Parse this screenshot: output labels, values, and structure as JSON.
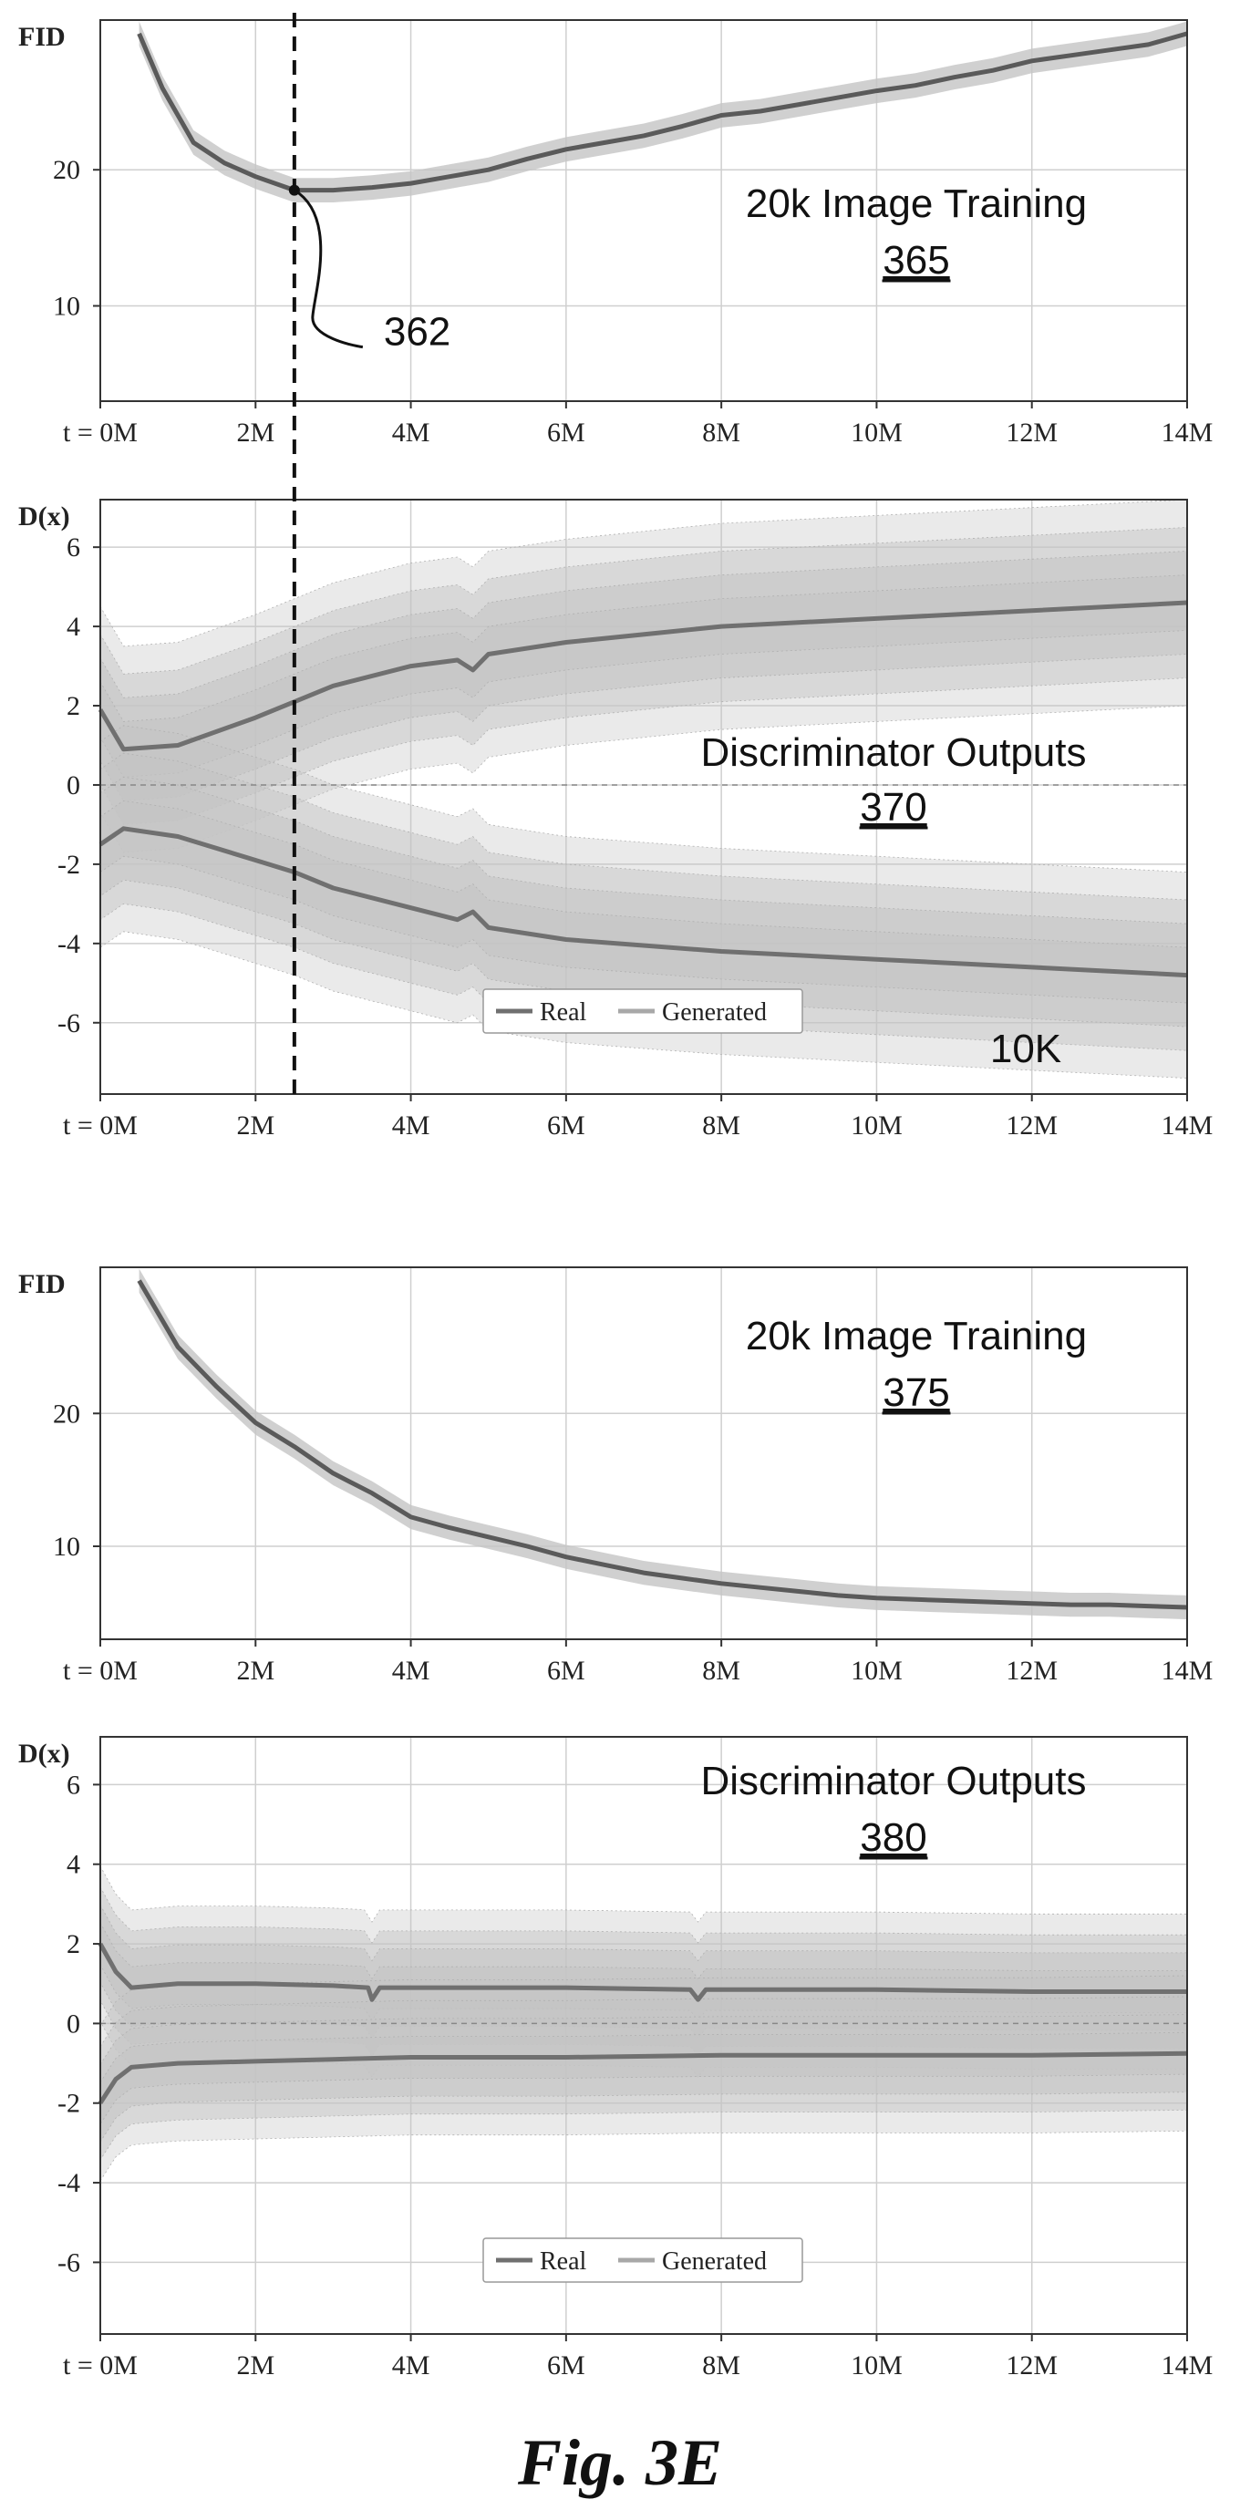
{
  "figure": {
    "caption": "Fig. 3E"
  },
  "colors": {
    "real": "#707070",
    "generated": "#a8a8a8",
    "band": "#c4c4c4",
    "grid": "#cfcfcf",
    "axis": "#333333"
  },
  "chart_data": [
    {
      "type": "line",
      "ylabel": "FID",
      "x_prefix": "t = ",
      "xlim": [
        0,
        14
      ],
      "ylim": [
        3,
        31
      ],
      "xticks": [
        "0M",
        "2M",
        "4M",
        "6M",
        "8M",
        "10M",
        "12M",
        "14M"
      ],
      "yticks": [
        10,
        20
      ],
      "grid": true,
      "annotation": "20k Image Training",
      "ref": "365",
      "marker": {
        "x": 2.5,
        "label": "362"
      },
      "series": [
        {
          "x": [
            0.5,
            0.8,
            1.2,
            1.6,
            2.0,
            2.5,
            3.0,
            3.5,
            4.0,
            4.5,
            5.0,
            5.5,
            6.0,
            6.5,
            7.0,
            7.5,
            8.0,
            8.5,
            9.0,
            9.5,
            10.0,
            10.5,
            11.0,
            11.5,
            12.0,
            12.5,
            13.0,
            13.5,
            14.0
          ],
          "y": [
            30,
            26,
            22,
            20.5,
            19.5,
            18.5,
            18.5,
            18.7,
            19,
            19.5,
            20,
            20.8,
            21.5,
            22,
            22.5,
            23.2,
            24,
            24.3,
            24.8,
            25.3,
            25.8,
            26.2,
            26.8,
            27.3,
            28,
            28.4,
            28.8,
            29.2,
            30
          ]
        }
      ]
    },
    {
      "type": "area",
      "ylabel": "D(x)",
      "x_prefix": "t = ",
      "xlim": [
        0,
        14
      ],
      "ylim": [
        -7.8,
        7.2
      ],
      "xticks": [
        "0M",
        "2M",
        "4M",
        "6M",
        "8M",
        "10M",
        "12M",
        "14M"
      ],
      "yticks": [
        6,
        4,
        2,
        0,
        -2,
        -4,
        -6
      ],
      "grid": true,
      "annotation": "Discriminator Outputs",
      "ref": "370",
      "tag": "10K",
      "marker": {
        "x": 2.5
      },
      "legend": [
        "Real",
        "Generated"
      ],
      "series": [
        {
          "name": "Real",
          "x": [
            0,
            0.3,
            1,
            2,
            2.5,
            3,
            4,
            4.6,
            4.8,
            5,
            6,
            8,
            10,
            12,
            14
          ],
          "y": [
            1.9,
            0.9,
            1.0,
            1.7,
            2.1,
            2.5,
            3.0,
            3.15,
            2.9,
            3.3,
            3.6,
            4.0,
            4.2,
            4.4,
            4.6
          ]
        },
        {
          "name": "Generated",
          "x": [
            0,
            0.3,
            1,
            2,
            2.5,
            3,
            4,
            4.6,
            4.8,
            5,
            6,
            8,
            10,
            12,
            14
          ],
          "y": [
            -1.5,
            -1.1,
            -1.3,
            -1.9,
            -2.2,
            -2.6,
            -3.1,
            -3.4,
            -3.2,
            -3.6,
            -3.9,
            -4.2,
            -4.4,
            -4.6,
            -4.8
          ]
        }
      ]
    },
    {
      "type": "line",
      "ylabel": "FID",
      "x_prefix": "t = ",
      "xlim": [
        0,
        14
      ],
      "ylim": [
        3,
        31
      ],
      "xticks": [
        "0M",
        "2M",
        "4M",
        "6M",
        "8M",
        "10M",
        "12M",
        "14M"
      ],
      "yticks": [
        10,
        20
      ],
      "grid": true,
      "annotation": "20k Image Training",
      "ref": "375",
      "series": [
        {
          "x": [
            0.5,
            1.0,
            1.5,
            2.0,
            2.5,
            3.0,
            3.5,
            4.0,
            4.5,
            5.0,
            5.5,
            6.0,
            6.5,
            7.0,
            7.5,
            8.0,
            8.5,
            9.0,
            9.5,
            10.0,
            10.5,
            11.0,
            11.5,
            12.0,
            12.5,
            13.0,
            13.5,
            14.0
          ],
          "y": [
            30,
            25,
            22,
            19.3,
            17.5,
            15.5,
            14,
            12.2,
            11.4,
            10.7,
            10.0,
            9.2,
            8.6,
            8.0,
            7.6,
            7.2,
            6.9,
            6.6,
            6.3,
            6.1,
            6.0,
            5.9,
            5.8,
            5.7,
            5.6,
            5.6,
            5.5,
            5.4
          ]
        }
      ]
    },
    {
      "type": "area",
      "ylabel": "D(x)",
      "x_prefix": "t = ",
      "xlim": [
        0,
        14
      ],
      "ylim": [
        -7.8,
        7.2
      ],
      "xticks": [
        "0M",
        "2M",
        "4M",
        "6M",
        "8M",
        "10M",
        "12M",
        "14M"
      ],
      "yticks": [
        6,
        4,
        2,
        0,
        -2,
        -4,
        -6
      ],
      "grid": true,
      "annotation": "Discriminator Outputs",
      "ref": "380",
      "legend": [
        "Real",
        "Generated"
      ],
      "series": [
        {
          "name": "Real",
          "x": [
            0,
            0.2,
            0.4,
            1,
            2,
            3,
            3.45,
            3.5,
            3.6,
            4,
            6,
            7.6,
            7.7,
            7.8,
            8,
            10,
            12,
            14
          ],
          "y": [
            2.0,
            1.3,
            0.9,
            1.0,
            1.0,
            0.95,
            0.9,
            0.6,
            0.9,
            0.9,
            0.9,
            0.85,
            0.6,
            0.85,
            0.85,
            0.85,
            0.8,
            0.8
          ]
        },
        {
          "name": "Generated",
          "x": [
            0,
            0.2,
            0.4,
            1,
            2,
            3,
            4,
            6,
            8,
            10,
            12,
            14
          ],
          "y": [
            -2.0,
            -1.4,
            -1.1,
            -1.0,
            -0.95,
            -0.9,
            -0.85,
            -0.85,
            -0.8,
            -0.8,
            -0.8,
            -0.75
          ]
        }
      ]
    }
  ]
}
